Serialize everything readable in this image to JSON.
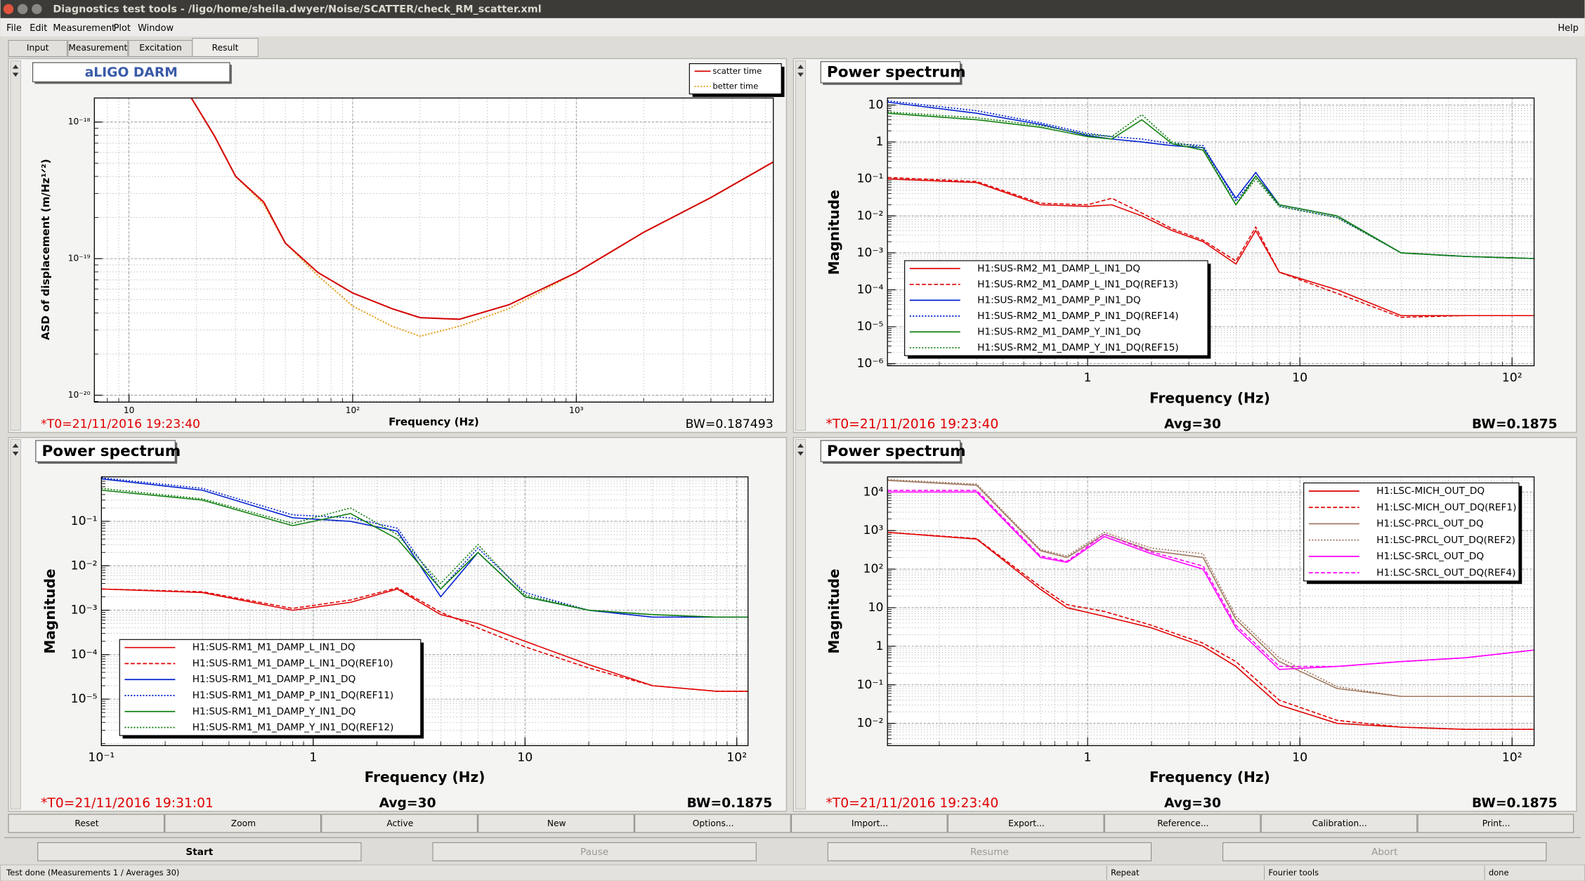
{
  "window_title": "Diagnostics test tools - /ligo/home/sheila.dwyer/Noise/SCATTER/check_RM_scatter.xml",
  "menu": [
    "File",
    "Edit",
    "Measurement",
    "Plot",
    "Window"
  ],
  "help": "Help",
  "tabs": [
    "Input",
    "Measurement",
    "Excitation",
    "Result"
  ],
  "plots": [
    {
      "type": "line",
      "title": "aLIGO DARM",
      "xlabel": "Frequency (Hz)",
      "ylabel": "ASD of displacement (m/Hz¹ᐟ²)",
      "log_x": true,
      "log_y": true,
      "grid": true,
      "legend": "top-right",
      "xlim": [
        7,
        7600
      ],
      "ylim": [
        8.9e-21,
        1.5e-18
      ],
      "xticks": [
        10,
        {
          "value": 100,
          "label": "10²"
        },
        {
          "value": 1000,
          "label": "10³"
        }
      ],
      "yticks": [
        {
          "value": 1e-20,
          "label": "10⁻²⁰"
        },
        {
          "value": 1e-19,
          "label": "10⁻¹⁹"
        },
        {
          "value": 1e-18,
          "label": "10⁻¹⁸"
        }
      ],
      "t0": "*T0=21/11/2016 19:23:40",
      "bw": "BW=0.187493",
      "x": [
        19,
        24,
        30,
        40,
        50,
        70,
        100,
        150,
        200,
        300,
        500,
        1000,
        2000,
        4000,
        7600
      ],
      "series": [
        {
          "name": "better time",
          "color": "#e8a020",
          "dash": "dotted",
          "values": [
            1.5e-18,
            8e-19,
            4e-19,
            2.5e-19,
            1.3e-19,
            7.5e-20,
            4.5e-20,
            3.2e-20,
            2.7e-20,
            3.2e-20,
            4.3e-20,
            7.9e-20,
            1.56e-19,
            2.8e-19,
            5.1e-19
          ]
        },
        {
          "name": "scatter time",
          "color": "#d40000",
          "dash": "solid",
          "values": [
            1.5e-18,
            8e-19,
            4e-19,
            2.6e-19,
            1.3e-19,
            7.9e-20,
            5.6e-20,
            4.3e-20,
            3.7e-20,
            3.6e-20,
            4.6e-20,
            7.9e-20,
            1.56e-19,
            2.8e-19,
            5.1e-19
          ]
        }
      ]
    },
    {
      "type": "line",
      "title": "Power spectrum",
      "xlabel": "Frequency (Hz)",
      "ylabel": "Magnitude",
      "log_x": true,
      "log_y": true,
      "grid": true,
      "legend": "bottom-left",
      "xlim": [
        0.114,
        127
      ],
      "ylim": [
        8.8e-07,
        15.5
      ],
      "xticks": [
        1,
        10,
        {
          "value": 100,
          "label": "10²"
        }
      ],
      "yticks": [
        {
          "value": 1e-06,
          "label": "10⁻⁶"
        },
        {
          "value": 1e-05,
          "label": "10⁻⁵"
        },
        {
          "value": 0.0001,
          "label": "10⁻⁴"
        },
        {
          "value": 0.001,
          "label": "10⁻³"
        },
        {
          "value": 0.01,
          "label": "10⁻²"
        },
        {
          "value": 0.1,
          "label": "10⁻¹"
        },
        1,
        10
      ],
      "t0": "*T0=21/11/2016 19:23:40",
      "avg": "Avg=30",
      "bw": "BW=0.1875",
      "x": [
        0.114,
        0.3,
        0.6,
        1,
        1.3,
        1.8,
        2.5,
        3.5,
        5,
        6.2,
        8,
        15,
        30,
        60,
        127
      ],
      "series": [
        {
          "name": "H1:SUS-RM2_M1_DAMP_L_IN1_DQ",
          "color": "#e00000",
          "dash": "solid",
          "values": [
            0.1,
            0.08,
            0.02,
            0.018,
            0.02,
            0.01,
            0.004,
            0.002,
            0.0005,
            0.004,
            0.0003,
            0.0001,
            2e-05,
            2e-05,
            2e-05
          ]
        },
        {
          "name": "H1:SUS-RM2_M1_DAMP_L_IN1_DQ(REF13)",
          "color": "#e00000",
          "dash": "dashed",
          "values": [
            0.11,
            0.085,
            0.022,
            0.02,
            0.03,
            0.012,
            0.0045,
            0.0022,
            0.0006,
            0.005,
            0.0003,
            8e-05,
            1.8e-05,
            2e-05,
            2e-05
          ]
        },
        {
          "name": "H1:SUS-RM2_M1_DAMP_P_IN1_DQ",
          "color": "#0020d0",
          "dash": "solid",
          "values": [
            12,
            6,
            3,
            1.5,
            1.2,
            1.0,
            0.8,
            0.7,
            0.03,
            0.15,
            0.02,
            0.01,
            0.001,
            0.0008,
            0.0007
          ]
        },
        {
          "name": "H1:SUS-RM2_M1_DAMP_P_IN1_DQ(REF14)",
          "color": "#0020d0",
          "dash": "dotted",
          "values": [
            13,
            7,
            3.3,
            1.7,
            1.4,
            1.2,
            0.9,
            0.8,
            0.025,
            0.12,
            0.018,
            0.009,
            0.001,
            0.0008,
            0.0007
          ]
        },
        {
          "name": "H1:SUS-RM2_M1_DAMP_Y_IN1_DQ",
          "color": "#108010",
          "dash": "solid",
          "values": [
            6,
            4,
            2.5,
            1.4,
            1.2,
            4,
            0.9,
            0.6,
            0.02,
            0.12,
            0.02,
            0.01,
            0.001,
            0.0008,
            0.0007
          ]
        },
        {
          "name": "H1:SUS-RM2_M1_DAMP_Y_IN1_DQ(REF15)",
          "color": "#108010",
          "dash": "dotted",
          "values": [
            6.5,
            4.5,
            2.8,
            1.6,
            1.4,
            5.5,
            1.0,
            0.7,
            0.02,
            0.1,
            0.018,
            0.009,
            0.001,
            0.0008,
            0.0007
          ]
        }
      ]
    },
    {
      "type": "line",
      "title": "Power spectrum",
      "xlabel": "Frequency (Hz)",
      "ylabel": "Magnitude",
      "log_x": true,
      "log_y": true,
      "grid": true,
      "legend": "bottom-left",
      "xlim": [
        0.1,
        113
      ],
      "ylim": [
        9e-07,
        1
      ],
      "xticks": [
        {
          "value": 0.1,
          "label": "10⁻¹"
        },
        1,
        10,
        {
          "value": 100,
          "label": "10²"
        }
      ],
      "yticks": [
        {
          "value": 1e-05,
          "label": "10⁻⁵"
        },
        {
          "value": 0.0001,
          "label": "10⁻⁴"
        },
        {
          "value": 0.001,
          "label": "10⁻³"
        },
        {
          "value": 0.01,
          "label": "10⁻²"
        },
        {
          "value": 0.1,
          "label": "10⁻¹"
        }
      ],
      "t0": "*T0=21/11/2016 19:31:01",
      "avg": "Avg=30",
      "bw": "BW=0.1875",
      "x": [
        0.1,
        0.3,
        0.8,
        1.5,
        2.5,
        4,
        6,
        10,
        20,
        40,
        80,
        113
      ],
      "series": [
        {
          "name": "H1:SUS-RM1_M1_DAMP_L_IN1_DQ",
          "color": "#e00000",
          "dash": "solid",
          "values": [
            0.003,
            0.0025,
            0.001,
            0.0015,
            0.003,
            0.0008,
            0.0005,
            0.0002,
            6e-05,
            2e-05,
            1.5e-05,
            1.5e-05
          ]
        },
        {
          "name": "H1:SUS-RM1_M1_DAMP_L_IN1_DQ(REF10)",
          "color": "#e00000",
          "dash": "dashed",
          "values": [
            0.003,
            0.0026,
            0.0011,
            0.0017,
            0.0032,
            0.0009,
            0.0004,
            0.00015,
            5e-05,
            2e-05,
            1.5e-05,
            1.5e-05
          ]
        },
        {
          "name": "H1:SUS-RM1_M1_DAMP_P_IN1_DQ",
          "color": "#0020d0",
          "dash": "solid",
          "values": [
            0.9,
            0.5,
            0.12,
            0.1,
            0.06,
            0.002,
            0.02,
            0.002,
            0.001,
            0.0007,
            0.0007,
            0.0007
          ]
        },
        {
          "name": "H1:SUS-RM1_M1_DAMP_P_IN1_DQ(REF11)",
          "color": "#0020d0",
          "dash": "dotted",
          "values": [
            0.95,
            0.55,
            0.14,
            0.12,
            0.07,
            0.003,
            0.025,
            0.0025,
            0.001,
            0.0007,
            0.0007,
            0.0007
          ]
        },
        {
          "name": "H1:SUS-RM1_M1_DAMP_Y_IN1_DQ",
          "color": "#108010",
          "dash": "solid",
          "values": [
            0.5,
            0.3,
            0.08,
            0.15,
            0.04,
            0.003,
            0.02,
            0.002,
            0.001,
            0.0008,
            0.0007,
            0.0007
          ]
        },
        {
          "name": "H1:SUS-RM1_M1_DAMP_Y_IN1_DQ(REF12)",
          "color": "#108010",
          "dash": "dotted",
          "values": [
            0.55,
            0.32,
            0.09,
            0.2,
            0.05,
            0.004,
            0.03,
            0.0022,
            0.001,
            0.0008,
            0.0007,
            0.0007
          ]
        }
      ]
    },
    {
      "type": "line",
      "title": "Power spectrum",
      "xlabel": "Frequency (Hz)",
      "ylabel": "Magnitude",
      "log_x": true,
      "log_y": true,
      "grid": true,
      "legend": "top-right",
      "xlim": [
        0.114,
        127
      ],
      "ylim": [
        0.00265,
        24700
      ],
      "xticks": [
        1,
        10,
        {
          "value": 100,
          "label": "10²"
        }
      ],
      "yticks": [
        {
          "value": 0.01,
          "label": "10⁻²"
        },
        {
          "value": 0.1,
          "label": "10⁻¹"
        },
        1,
        10,
        {
          "value": 100,
          "label": "10²"
        },
        {
          "value": 1000,
          "label": "10³"
        },
        {
          "value": 10000,
          "label": "10⁴"
        }
      ],
      "t0": "*T0=21/11/2016 19:23:40",
      "avg": "Avg=30",
      "bw": "BW=0.1875",
      "x": [
        0.114,
        0.3,
        0.6,
        0.8,
        1.2,
        2,
        3.5,
        5,
        8,
        15,
        30,
        60,
        127
      ],
      "series": [
        {
          "name": "H1:LSC-MICH_OUT_DQ",
          "color": "#e00000",
          "dash": "solid",
          "values": [
            900,
            600,
            30,
            10,
            6,
            3,
            1,
            0.3,
            0.03,
            0.01,
            0.008,
            0.007,
            0.007
          ]
        },
        {
          "name": "H1:LSC-MICH_OUT_DQ(REF1)",
          "color": "#e00000",
          "dash": "dashed",
          "values": [
            900,
            620,
            35,
            12,
            8,
            3.5,
            1.2,
            0.4,
            0.04,
            0.012,
            0.008,
            0.007,
            0.007
          ]
        },
        {
          "name": "H1:LSC-PRCL_OUT_DQ",
          "color": "#a07860",
          "dash": "solid",
          "values": [
            20000,
            15000,
            300,
            200,
            800,
            300,
            200,
            5,
            0.4,
            0.08,
            0.05,
            0.05,
            0.05
          ]
        },
        {
          "name": "H1:LSC-PRCL_OUT_DQ(REF2)",
          "color": "#a07860",
          "dash": "dotted",
          "values": [
            21000,
            16000,
            320,
            220,
            900,
            350,
            250,
            6,
            0.5,
            0.09,
            0.05,
            0.05,
            0.05
          ]
        },
        {
          "name": "H1:LSC-SRCL_OUT_DQ",
          "color": "#ff00ff",
          "dash": "solid",
          "values": [
            10000,
            10000,
            200,
            150,
            700,
            250,
            100,
            3,
            0.25,
            0.3,
            0.4,
            0.5,
            0.8
          ]
        },
        {
          "name": "H1:LSC-SRCL_OUT_DQ(REF4)",
          "color": "#ff00ff",
          "dash": "dashed",
          "values": [
            11000,
            11000,
            220,
            160,
            800,
            280,
            120,
            3.5,
            0.3,
            0.3,
            0.4,
            0.5,
            0.8
          ]
        }
      ]
    }
  ],
  "buttons": {
    "row1": [
      "Reset",
      "Zoom",
      "Active",
      "New",
      "Options...",
      "Import...",
      "Export...",
      "Reference...",
      "Calibration...",
      "Print..."
    ],
    "row2": [
      "Start",
      "Pause",
      "Resume",
      "Abort"
    ]
  },
  "status": [
    "Test done (Measurements 1 / Averages 30)",
    "Repeat",
    "Fourier tools",
    "done"
  ]
}
